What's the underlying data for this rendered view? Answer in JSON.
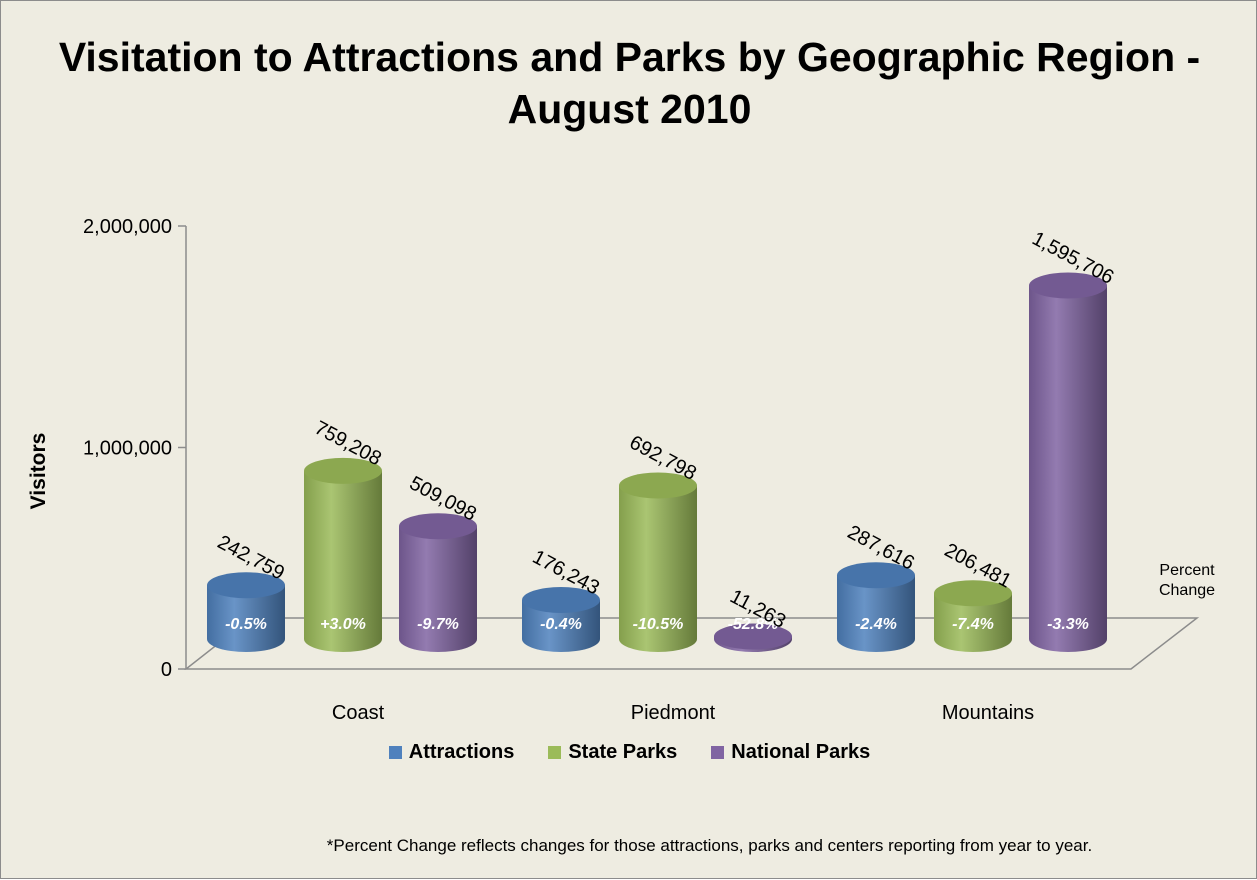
{
  "chart_data": {
    "type": "bar",
    "title": "Visitation to Attractions and Parks by Geographic Region -\nAugust 2010",
    "ylabel": "Visitors",
    "ylim": [
      0,
      2000000
    ],
    "yticks": [
      {
        "value": 0,
        "label": "0"
      },
      {
        "value": 1000000,
        "label": "1,000,000"
      },
      {
        "value": 2000000,
        "label": "2,000,000"
      }
    ],
    "categories": [
      "Coast",
      "Piedmont",
      "Mountains"
    ],
    "series": [
      {
        "name": "Attractions",
        "color": "#4f81bd",
        "values": [
          242759,
          176243,
          287616
        ],
        "value_labels": [
          "242,759",
          "176,243",
          "287,616"
        ],
        "pct_labels": [
          "-0.5%",
          "-0.4%",
          "-2.4%"
        ]
      },
      {
        "name": "State Parks",
        "color": "#9bbb59",
        "values": [
          759208,
          692798,
          206481
        ],
        "value_labels": [
          "759,208",
          "692,798",
          "206,481"
        ],
        "pct_labels": [
          "+3.0%",
          "-10.5%",
          "-7.4%"
        ]
      },
      {
        "name": "National Parks",
        "color": "#8064a2",
        "values": [
          509098,
          11263,
          1595706
        ],
        "value_labels": [
          "509,098",
          "11,263",
          "1,595,706"
        ],
        "pct_labels": [
          "-9.7%",
          "-52.8%",
          "-3.3%"
        ]
      }
    ],
    "side_note": "Percent\nChange",
    "legend_position": "bottom",
    "footnote": "*Percent Change reflects changes for those attractions, parks and centers reporting from year to year."
  }
}
